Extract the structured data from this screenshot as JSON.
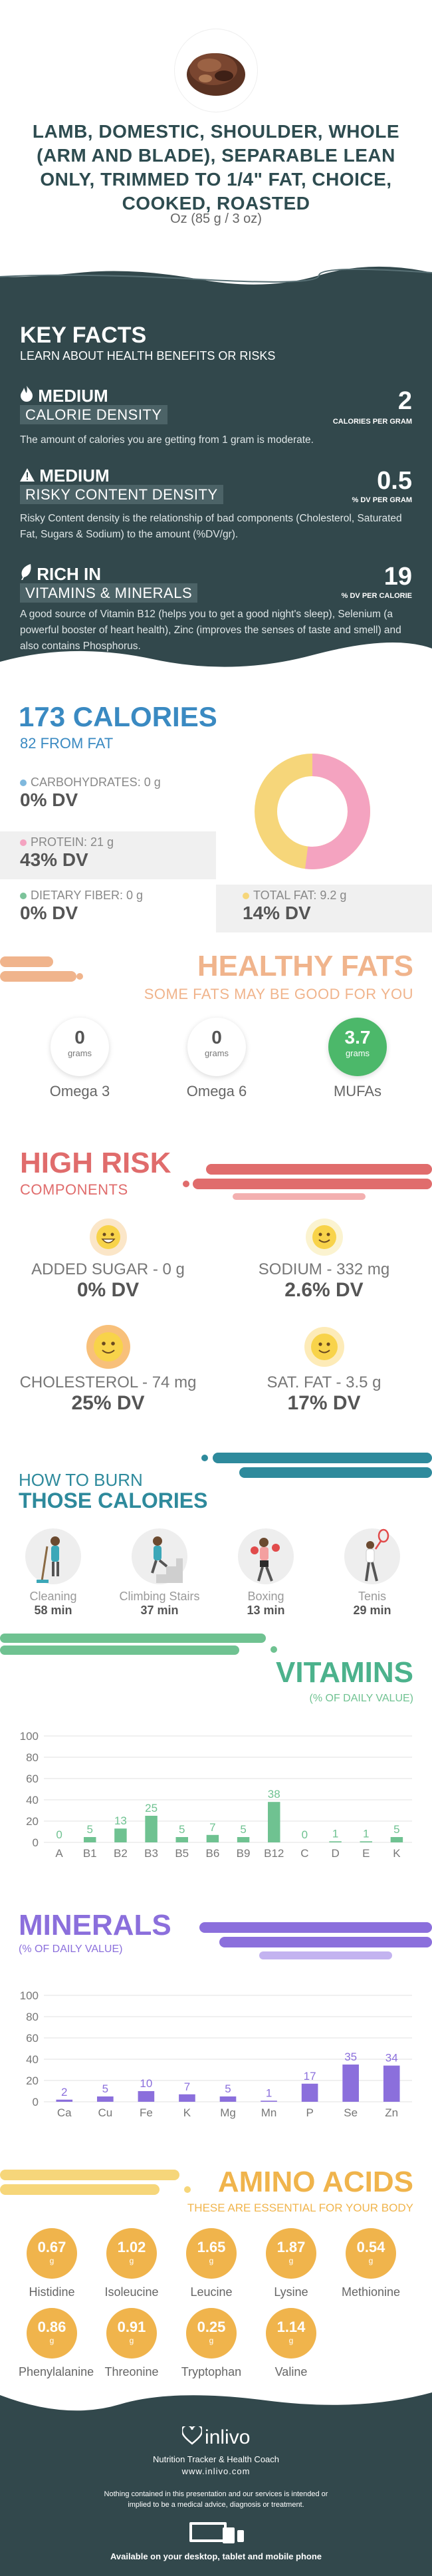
{
  "header": {
    "title": "LAMB, DOMESTIC, SHOULDER, WHOLE (ARM AND BLADE), SEPARABLE LEAN ONLY, TRIMMED TO 1/4\" FAT, CHOICE, COOKED, ROASTED",
    "serving": "Oz (85 g / 3 oz)",
    "image_icon": "roasted-lamb-food-photo"
  },
  "key_facts": {
    "title": "KEY FACTS",
    "subtitle": "LEARN ABOUT HEALTH BENEFITS OR RISKS",
    "items": [
      {
        "icon": "flame-icon",
        "level": "MEDIUM",
        "label": "CALORIE DENSITY",
        "value": "2",
        "unit": "CALORIES PER GRAM",
        "description": "The amount of calories you are getting from 1 gram is moderate."
      },
      {
        "icon": "warning-icon",
        "level": "MEDIUM",
        "label": "RISKY CONTENT DENSITY",
        "value": "0.5",
        "unit": "% DV PER GRAM",
        "description": "Risky Content density is the relationship of bad components (Cholesterol, Saturated Fat, Sugars & Sodium) to the amount (%DV/gr)."
      },
      {
        "icon": "leaf-icon",
        "level": "RICH  IN",
        "label": "VITAMINS & MINERALS",
        "value": "19",
        "unit": "% DV PER CALORIE",
        "description": "A good source of Vitamin B12 (helps you to get a good night's sleep), Selenium (a powerful booster of heart health), Zinc (improves the senses of taste and smell) and also contains Phosphorus."
      }
    ]
  },
  "calories": {
    "title": "173 CALORIES",
    "subtitle": "82 FROM FAT",
    "macros": [
      {
        "label": "CARBOHYDRATES: 0 g",
        "dv": "0% DV",
        "color": "#7fb8dd"
      },
      {
        "label": "PROTEIN: 21 g",
        "dv": "43% DV",
        "color": "#f4a3c0"
      },
      {
        "label": "DIETARY FIBER: 0 g",
        "dv": "0% DV",
        "color": "#7cc39a"
      },
      {
        "label": "TOTAL FAT: 9.2 g",
        "dv": "14% DV",
        "color": "#f6d67a"
      }
    ],
    "donut": {
      "protein_fraction": 0.52,
      "fat_fraction": 0.48,
      "protein_color": "#f4a3c0",
      "fat_color": "#f6d67a"
    }
  },
  "fats": {
    "title": "HEALTHY FATS",
    "subtitle": "SOME FATS MAY BE GOOD FOR YOU",
    "items": [
      {
        "value": "0",
        "unit": "grams",
        "name": "Omega 3"
      },
      {
        "value": "0",
        "unit": "grams",
        "name": "Omega 6"
      },
      {
        "value": "3.7",
        "unit": "grams",
        "name": "MUFAs"
      }
    ]
  },
  "risk": {
    "title": "HIGH RISK",
    "subtitle": "COMPONENTS",
    "items": [
      {
        "label": "ADDED SUGAR - 0 g",
        "dv": "0% DV",
        "icon": "grin-face-icon"
      },
      {
        "label": "SODIUM - 332 mg",
        "dv": "2.6% DV",
        "icon": "smile-face-icon"
      },
      {
        "label": "CHOLESTEROL - 74 mg",
        "dv": "25% DV",
        "icon": "smile-face-icon"
      },
      {
        "label": "SAT. FAT - 3.5 g",
        "dv": "17% DV",
        "icon": "smile-face-icon"
      }
    ]
  },
  "burn": {
    "title1": "HOW TO BURN",
    "title2": "THOSE CALORIES",
    "items": [
      {
        "name": "Cleaning",
        "minutes": "58 min",
        "icon": "cleaning-person-icon"
      },
      {
        "name": "Climbing Stairs",
        "minutes": "37 min",
        "icon": "stairs-climber-icon"
      },
      {
        "name": "Boxing",
        "minutes": "13 min",
        "icon": "boxer-icon"
      },
      {
        "name": "Tenis",
        "minutes": "29 min",
        "icon": "tennis-player-icon"
      }
    ]
  },
  "vitamins": {
    "title": "VITAMINS",
    "subtitle": "(% OF DAILY VALUE)"
  },
  "minerals": {
    "title": "MINERALS",
    "subtitle": "(% OF DAILY VALUE)"
  },
  "amino": {
    "title": "AMINO ACIDS",
    "subtitle": "THESE ARE ESSENTIAL FOR YOUR BODY",
    "unit": "g",
    "items": [
      {
        "value": "0.67",
        "name": "Histidine"
      },
      {
        "value": "1.02",
        "name": "Isoleucine"
      },
      {
        "value": "1.65",
        "name": "Leucine"
      },
      {
        "value": "1.87",
        "name": "Lysine"
      },
      {
        "value": "0.54",
        "name": "Methionine"
      },
      {
        "value": "0.86",
        "name": "Phenylalanine"
      },
      {
        "value": "0.91",
        "name": "Threonine"
      },
      {
        "value": "0.25",
        "name": "Tryptophan"
      },
      {
        "value": "1.14",
        "name": "Valine"
      }
    ]
  },
  "footer": {
    "brand": "inlivo",
    "tagline": "Nutrition Tracker & Health Coach",
    "url": "www.inlivo.com",
    "disclaimer": "Nothing contained in this presentation and our services is intended or implied to be a medical advice, diagnosis or treatment.",
    "availability": "Available on your desktop, tablet and mobile phone"
  },
  "chart_data": [
    {
      "type": "bar",
      "title": "VITAMINS",
      "subtitle": "(% OF DAILY VALUE)",
      "categories": [
        "A",
        "B1",
        "B2",
        "B3",
        "B5",
        "B6",
        "B9",
        "B12",
        "C",
        "D",
        "E",
        "K"
      ],
      "values": [
        0,
        5,
        13,
        25,
        5,
        7,
        5,
        38,
        0,
        1,
        1,
        5
      ],
      "ylim": [
        0,
        100
      ],
      "yticks": [
        0,
        20,
        40,
        60,
        80,
        100
      ],
      "color": "#6fc291",
      "grid": true
    },
    {
      "type": "bar",
      "title": "MINERALS",
      "subtitle": "(% OF DAILY VALUE)",
      "categories": [
        "Ca",
        "Cu",
        "Fe",
        "K",
        "Mg",
        "Mn",
        "P",
        "Se",
        "Zn"
      ],
      "values": [
        2,
        5,
        10,
        7,
        5,
        1,
        17,
        35,
        34
      ],
      "ylim": [
        0,
        100
      ],
      "yticks": [
        0,
        20,
        40,
        60,
        80,
        100
      ],
      "color": "#8b6fdc",
      "grid": true
    }
  ]
}
